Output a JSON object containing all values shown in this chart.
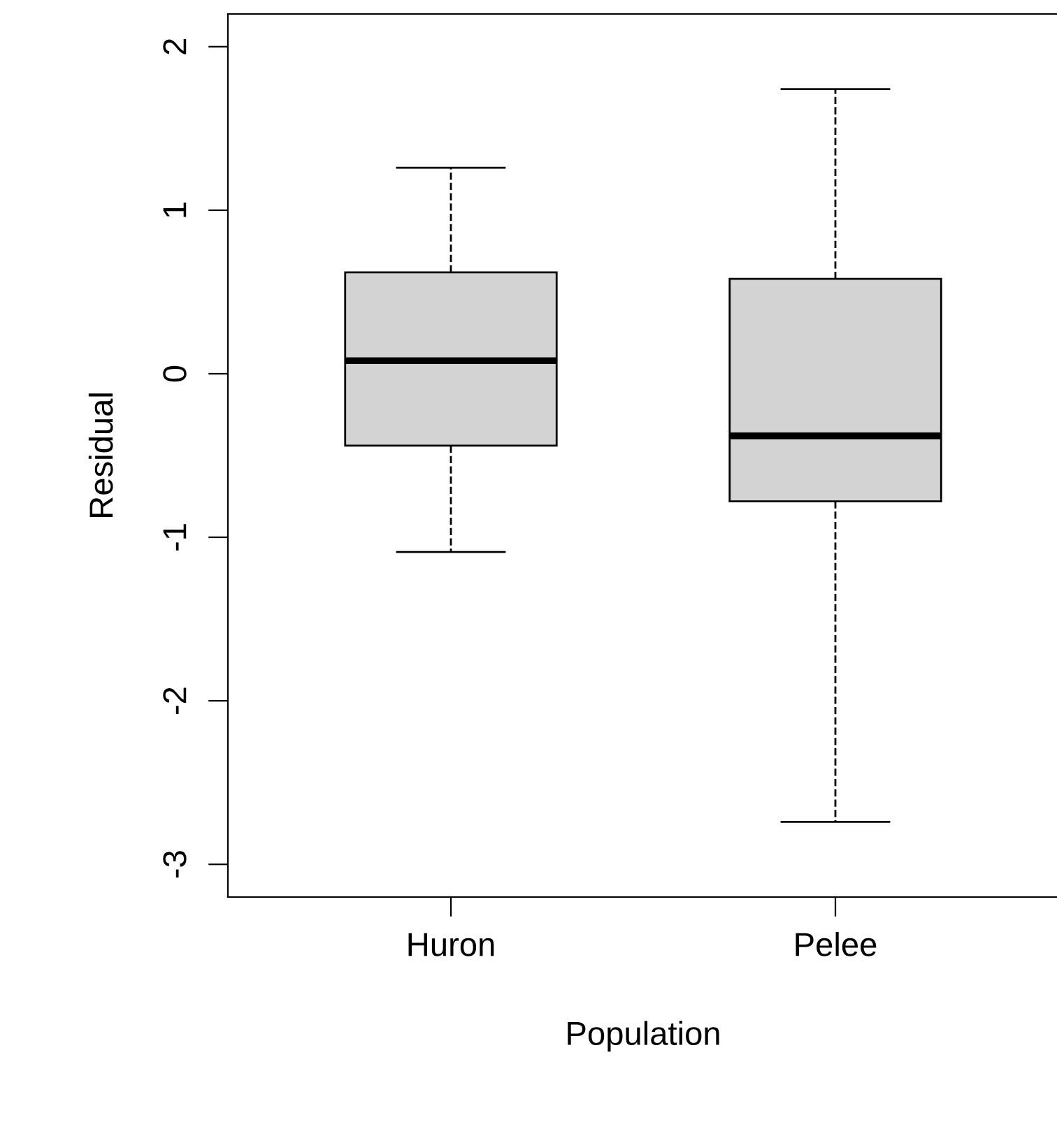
{
  "chart_data": {
    "type": "box",
    "xlabel": "Population",
    "ylabel": "Residual",
    "categories": [
      "Huron",
      "Pelee"
    ],
    "series": [
      {
        "color": "#d3d3d3",
        "boxes": [
          {
            "low": -1.09,
            "q1": -0.44,
            "median": 0.08,
            "q3": 0.62,
            "high": 1.26
          },
          {
            "low": -2.74,
            "q1": -0.78,
            "median": -0.38,
            "q3": 0.58,
            "high": 1.74
          }
        ]
      }
    ],
    "ylim": [
      -3.2,
      2.2
    ],
    "yticks": [
      -3,
      -2,
      -1,
      0,
      1,
      2
    ]
  }
}
